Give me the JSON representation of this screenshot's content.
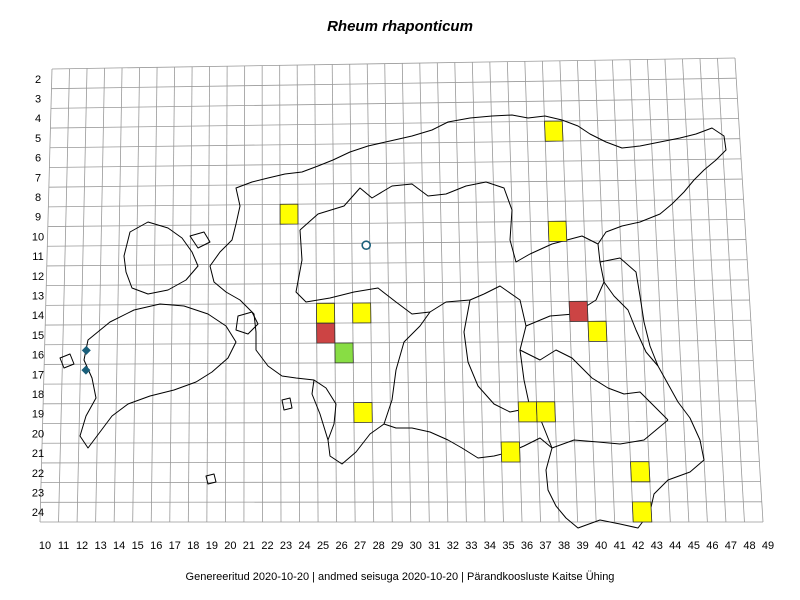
{
  "title": "Rheum rhaponticum",
  "footer": "Genereeritud 2020-10-20  |  andmed seisuga 2020-10-20  |  Pärandkoosluste Kaitse Ühing",
  "grid": {
    "x_labels": [
      "10",
      "11",
      "12",
      "13",
      "14",
      "15",
      "16",
      "17",
      "18",
      "19",
      "20",
      "21",
      "22",
      "23",
      "24",
      "25",
      "26",
      "27",
      "28",
      "29",
      "30",
      "31",
      "32",
      "33",
      "34",
      "35",
      "36",
      "37",
      "38",
      "39",
      "40",
      "41",
      "42",
      "43",
      "44",
      "45",
      "46",
      "47",
      "48",
      "49"
    ],
    "y_labels": [
      "2",
      "3",
      "4",
      "5",
      "6",
      "7",
      "8",
      "9",
      "10",
      "11",
      "12",
      "13",
      "14",
      "15",
      "16",
      "17",
      "18",
      "19",
      "20",
      "21",
      "22",
      "23",
      "24"
    ]
  },
  "colors": {
    "yellow": "#ffff00",
    "red": "#cc4444",
    "green": "#88dd44",
    "marker": "#1a5f7a",
    "grid": "#999999",
    "outline": "#000000"
  },
  "observations": [
    {
      "x": 38,
      "y": 5,
      "color": "yellow"
    },
    {
      "x": 23,
      "y": 9,
      "color": "yellow"
    },
    {
      "x": 38,
      "y": 10,
      "color": "yellow"
    },
    {
      "x": 25,
      "y": 14,
      "color": "yellow"
    },
    {
      "x": 27,
      "y": 14,
      "color": "yellow"
    },
    {
      "x": 39,
      "y": 14,
      "color": "red"
    },
    {
      "x": 25,
      "y": 15,
      "color": "red"
    },
    {
      "x": 40,
      "y": 15,
      "color": "yellow"
    },
    {
      "x": 26,
      "y": 16,
      "color": "green"
    },
    {
      "x": 27,
      "y": 19,
      "color": "yellow"
    },
    {
      "x": 36,
      "y": 19,
      "color": "yellow"
    },
    {
      "x": 37,
      "y": 19,
      "color": "yellow"
    },
    {
      "x": 35,
      "y": 21,
      "color": "yellow"
    },
    {
      "x": 42,
      "y": 22,
      "color": "yellow"
    },
    {
      "x": 42,
      "y": 24,
      "color": "yellow"
    }
  ],
  "point_markers": [
    {
      "x": 27.8,
      "y": 11.1,
      "shape": "circle"
    },
    {
      "x": 12.3,
      "y": 16.3,
      "shape": "diamond"
    },
    {
      "x": 12.3,
      "y": 17.3,
      "shape": "diamond"
    }
  ]
}
